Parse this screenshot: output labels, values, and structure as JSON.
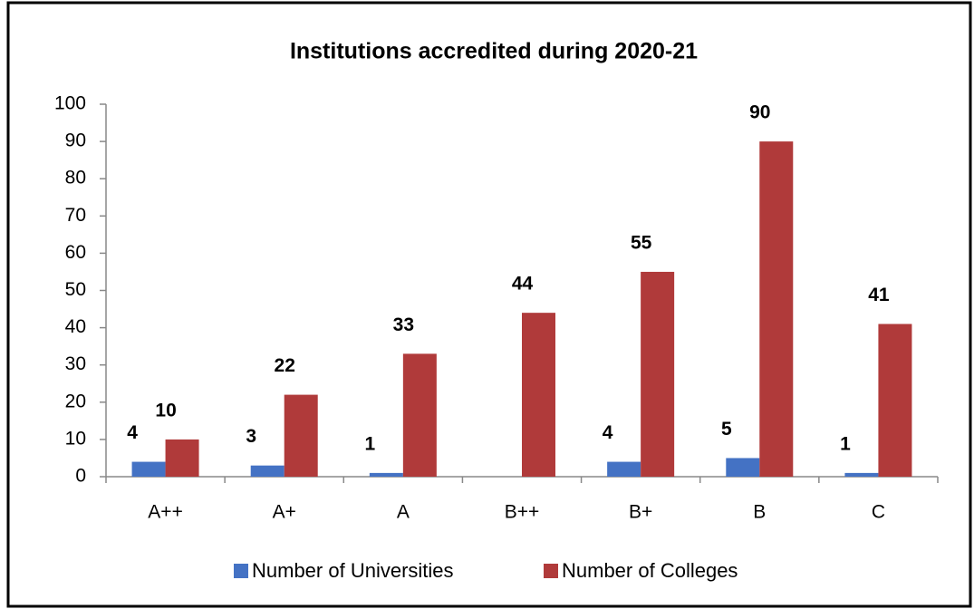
{
  "chart_data": {
    "type": "bar",
    "title": "Institutions accredited during 2020-21",
    "categories": [
      "A++",
      "A+",
      "A",
      "B++",
      "B+",
      "B",
      "C"
    ],
    "series": [
      {
        "name": "Number of Universities",
        "color": "#4472c4",
        "values": [
          4,
          3,
          1,
          null,
          4,
          5,
          1
        ]
      },
      {
        "name": "Number of Colleges",
        "color": "#b03a3a",
        "values": [
          10,
          22,
          33,
          44,
          55,
          90,
          41
        ]
      }
    ],
    "ylim": [
      0,
      100
    ],
    "yticks": [
      0,
      10,
      20,
      30,
      40,
      50,
      60,
      70,
      80,
      90,
      100
    ],
    "grid": false,
    "legend": "bottom"
  }
}
